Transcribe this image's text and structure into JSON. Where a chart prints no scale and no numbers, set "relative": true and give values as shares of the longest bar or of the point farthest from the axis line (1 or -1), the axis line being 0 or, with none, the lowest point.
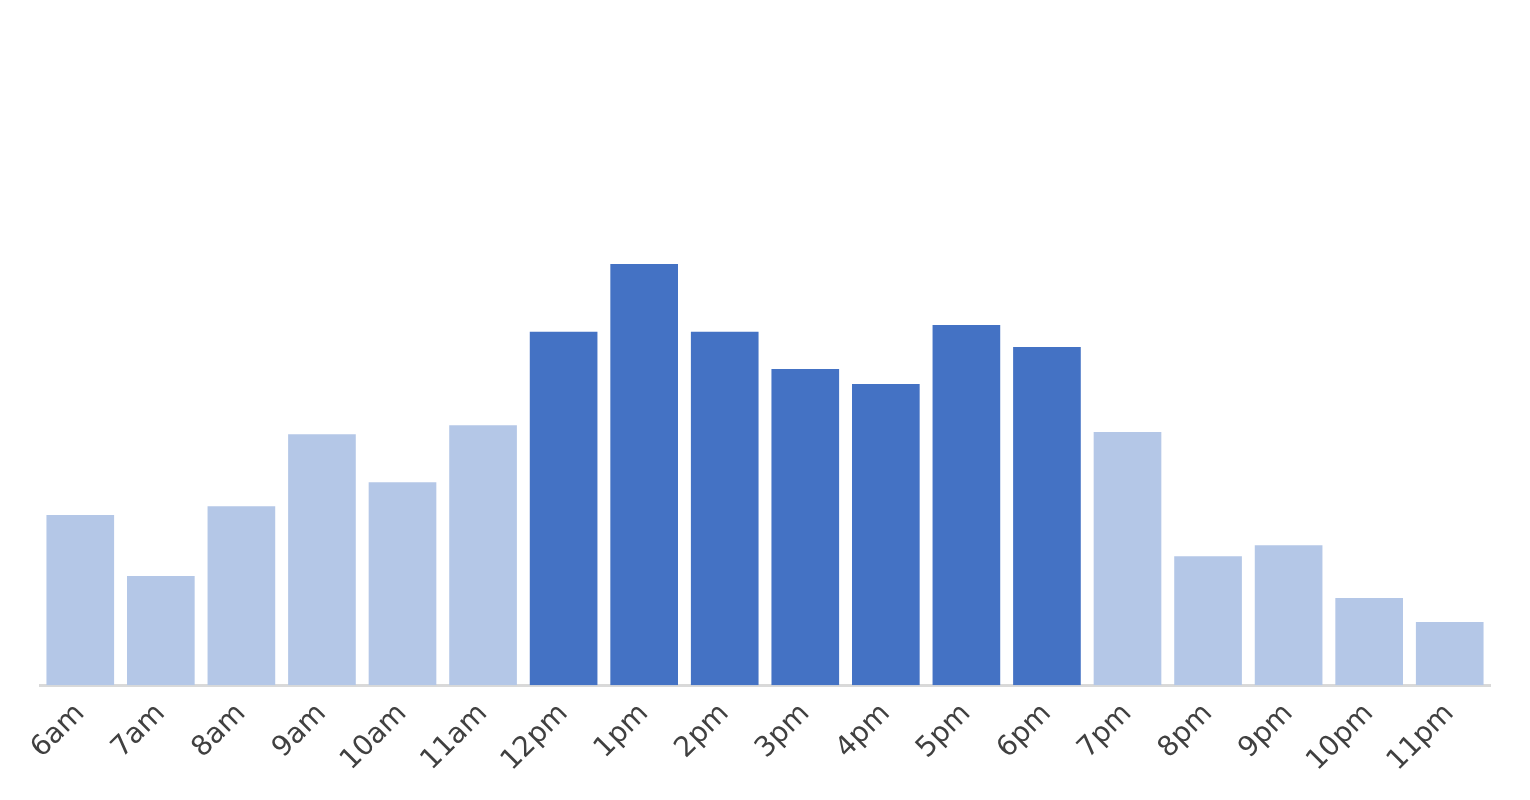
{
  "chart_data": {
    "type": "bar",
    "relative": true,
    "grid": false,
    "legend": false,
    "categories": [
      "6am",
      "7am",
      "8am",
      "9am",
      "10am",
      "11am",
      "12pm",
      "1pm",
      "2pm",
      "3pm",
      "4pm",
      "5pm",
      "6pm",
      "7pm",
      "8pm",
      "9pm",
      "10pm",
      "11pm"
    ],
    "values": [
      0.404,
      0.259,
      0.425,
      0.596,
      0.482,
      0.617,
      0.839,
      1,
      0.839,
      0.751,
      0.715,
      0.855,
      0.803,
      0.601,
      0.306,
      0.332,
      0.207,
      0.15
    ],
    "colors": [
      "#b4c7e7",
      "#b4c7e7",
      "#b4c7e7",
      "#b4c7e7",
      "#b4c7e7",
      "#b4c7e7",
      "#4472c4",
      "#4472c4",
      "#4472c4",
      "#4472c4",
      "#4472c4",
      "#4472c4",
      "#4472c4",
      "#b4c7e7",
      "#b4c7e7",
      "#b4c7e7",
      "#b4c7e7",
      "#b4c7e7"
    ]
  }
}
